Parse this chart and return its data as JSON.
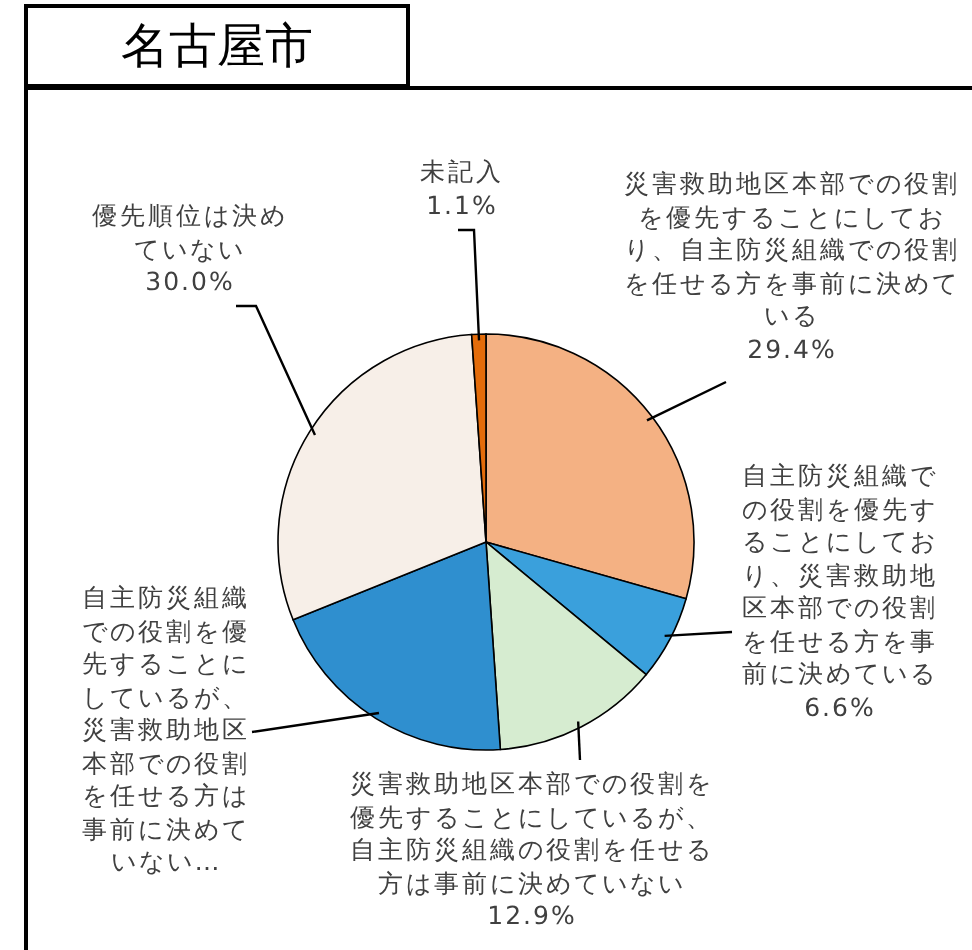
{
  "chart_data": {
    "type": "pie",
    "title": "名古屋市",
    "categories": [
      "災害救助地区本部での役割を優先することにしており、自主防災組織での役割を任せる方を事前に決めている",
      "自主防災組織での役割を優先することにしており、災害救助地区本部での役割を任せる方を事前に決めている",
      "災害救助地区本部での役割を優先することにしているが、自主防災組織の役割を任せる方は事前に決めていない",
      "自主防災組織での役割を優先することにしているが、災害救助地区本部での役割を任せる方は事前に決めていない…",
      "優先順位は決めていない",
      "未記入"
    ],
    "values": [
      29.4,
      6.6,
      12.9,
      20.0,
      30.0,
      1.1
    ],
    "value_labels": [
      "29.4%",
      "6.6%",
      "12.9%",
      null,
      "30.0%",
      "1.1%"
    ],
    "colors": [
      "#f4b183",
      "#3aa0dc",
      "#d6ecd0",
      "#2f8fcf",
      "#f7efe8",
      "#e46c0a"
    ]
  }
}
